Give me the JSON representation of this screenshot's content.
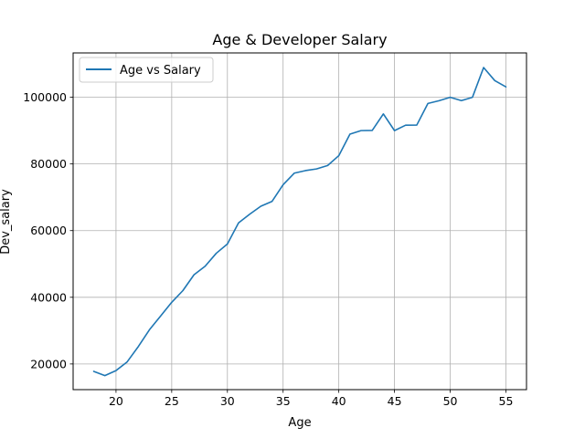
{
  "chart_data": {
    "type": "line",
    "title": "Age & Developer Salary",
    "xlabel": "Age",
    "ylabel": "Dev_salary",
    "xlim": [
      16.15,
      56.85
    ],
    "ylim": [
      12300,
      113300
    ],
    "xticks": [
      20,
      25,
      30,
      35,
      40,
      45,
      50,
      55
    ],
    "yticks": [
      20000,
      40000,
      60000,
      80000,
      100000
    ],
    "grid": true,
    "legend_position": "upper-left",
    "series": [
      {
        "name": "Age vs Salary",
        "color": "#1f77b4",
        "x": [
          18,
          19,
          20,
          21,
          22,
          23,
          24,
          25,
          26,
          27,
          28,
          29,
          30,
          31,
          32,
          33,
          34,
          35,
          36,
          37,
          38,
          39,
          40,
          41,
          42,
          43,
          44,
          45,
          46,
          47,
          48,
          49,
          50,
          51,
          52,
          53,
          54,
          55
        ],
        "y": [
          17784,
          16500,
          18012,
          20628,
          25206,
          30252,
          34368,
          38496,
          42000,
          46752,
          49320,
          53200,
          56000,
          62316,
          64928,
          67317,
          68748,
          73752,
          77232,
          78000,
          78508,
          79536,
          82488,
          88935,
          90000,
          90056,
          95000,
          90000,
          91633,
          91660,
          98150,
          98964,
          100000,
          98988,
          100000,
          108923,
          105000,
          103117
        ]
      }
    ]
  }
}
